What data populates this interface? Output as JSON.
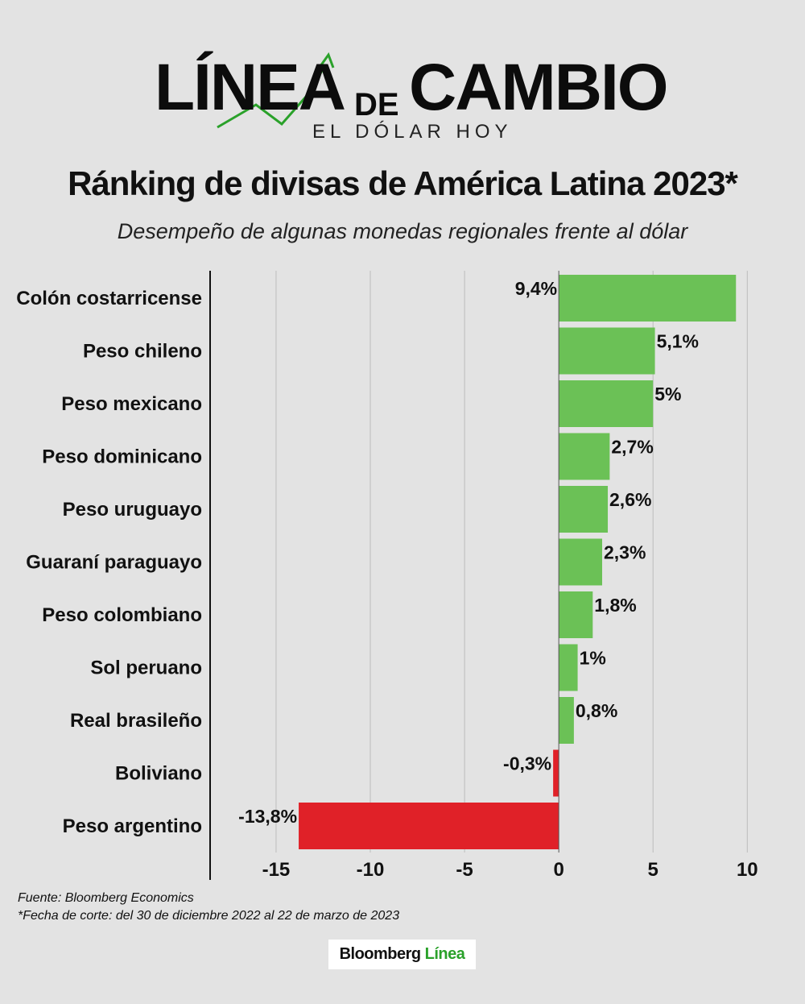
{
  "logo": {
    "word1": "LÍNEA",
    "word_de": "DE",
    "word2": "CAMBIO",
    "tagline": "EL DÓLAR HOY"
  },
  "title": "Ránking de divisas de América Latina 2023*",
  "subtitle": "Desempeño de algunas monedas regionales frente al dólar",
  "notes": {
    "source": "Fuente: Bloomberg Economics",
    "cutoff": "*Fecha de corte: del 30 de diciembre 2022 al 22 de marzo de 2023"
  },
  "brand": {
    "part1": "Bloomberg",
    "part2": "Línea"
  },
  "colors": {
    "positive": "#6bc156",
    "negative": "#e02128",
    "grid": "#bdbdbd",
    "axis": "#111111",
    "arrow": "#2aa12a"
  },
  "chart_data": {
    "type": "bar",
    "orientation": "horizontal",
    "title": "Ránking de divisas de América Latina 2023*",
    "categories": [
      "Colón costarricense",
      "Peso chileno",
      "Peso mexicano",
      "Peso dominicano",
      "Peso uruguayo",
      "Guaraní paraguayo",
      "Peso colombiano",
      "Sol peruano",
      "Real brasileño",
      "Boliviano",
      "Peso argentino"
    ],
    "values": [
      9.4,
      5.1,
      5,
      2.7,
      2.6,
      2.3,
      1.8,
      1,
      0.8,
      -0.3,
      -13.8
    ],
    "labels": [
      "9,4%",
      "5,1%",
      "5%",
      "2,7%",
      "2,6%",
      "2,3%",
      "1,8%",
      "1%",
      "0,8%",
      "-0,3%",
      "-13,8%"
    ],
    "xlim": [
      -18.5,
      10.5
    ],
    "xticks": [
      -15,
      -10,
      -5,
      0,
      5,
      10
    ],
    "xtick_labels": [
      "-15",
      "-10",
      "-5",
      "0",
      "5",
      "10"
    ],
    "grid": true
  }
}
